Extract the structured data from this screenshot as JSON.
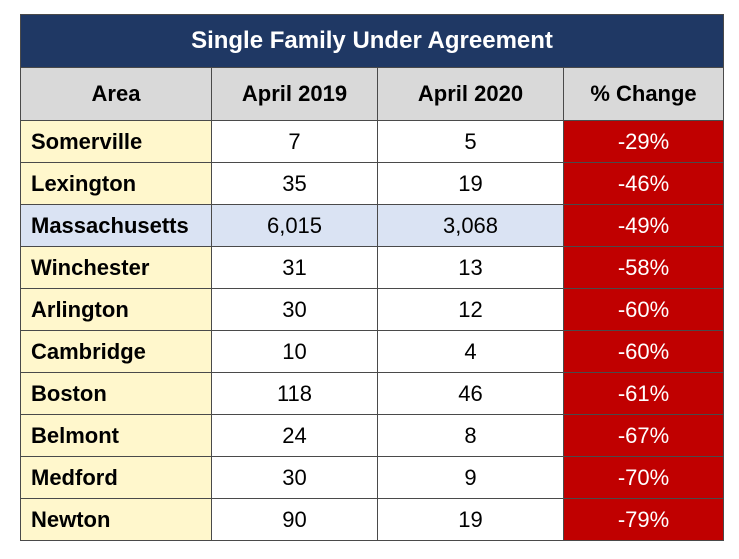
{
  "chart_data": {
    "type": "table",
    "title": "Single Family Under Agreement",
    "columns": [
      "Area",
      "April 2019",
      "April 2020",
      "% Change"
    ],
    "rows": [
      {
        "area": "Somerville",
        "april_2019": "7",
        "april_2020": "5",
        "change": "-29%",
        "highlight": false
      },
      {
        "area": "Lexington",
        "april_2019": "35",
        "april_2020": "19",
        "change": "-46%",
        "highlight": false
      },
      {
        "area": "Massachusetts",
        "april_2019": "6,015",
        "april_2020": "3,068",
        "change": "-49%",
        "highlight": true
      },
      {
        "area": "Winchester",
        "april_2019": "31",
        "april_2020": "13",
        "change": "-58%",
        "highlight": false
      },
      {
        "area": "Arlington",
        "april_2019": "30",
        "april_2020": "12",
        "change": "-60%",
        "highlight": false
      },
      {
        "area": "Cambridge",
        "april_2019": "10",
        "april_2020": "4",
        "change": "-60%",
        "highlight": false
      },
      {
        "area": "Boston",
        "april_2019": "118",
        "april_2020": "46",
        "change": "-61%",
        "highlight": false
      },
      {
        "area": "Belmont",
        "april_2019": "24",
        "april_2020": "8",
        "change": "-67%",
        "highlight": false
      },
      {
        "area": "Medford",
        "april_2019": "30",
        "april_2020": "9",
        "change": "-70%",
        "highlight": false
      },
      {
        "area": "Newton",
        "april_2019": "90",
        "april_2020": "19",
        "change": "-79%",
        "highlight": false
      }
    ]
  },
  "colors": {
    "title_bg": "#1f3864",
    "header_bg": "#d9d9d9",
    "area_bg": "#fff7cc",
    "highlight_bg": "#dae3f3",
    "change_bg": "#c00000"
  }
}
